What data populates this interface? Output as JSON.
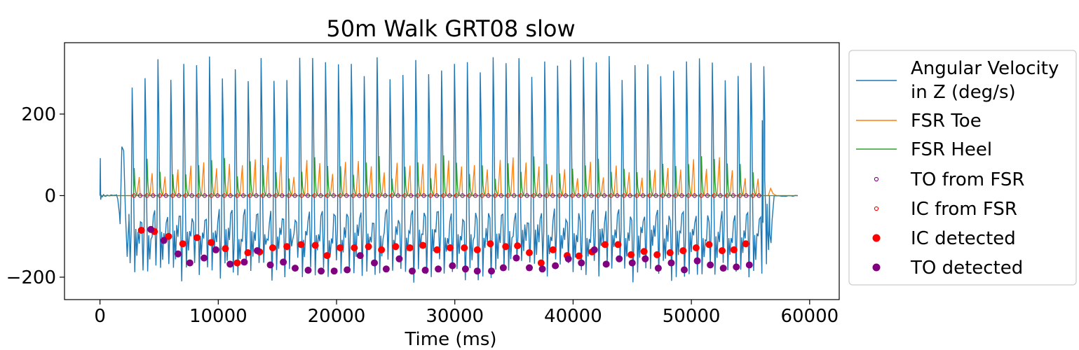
{
  "chart_data": {
    "type": "line",
    "title": "50m Walk GRT08 slow",
    "xlabel": "Time (ms)",
    "ylabel": "",
    "xlim": [
      -3000,
      62500
    ],
    "ylim": [
      -255,
      375
    ],
    "xticks": [
      0,
      10000,
      20000,
      30000,
      40000,
      50000,
      60000
    ],
    "xtick_labels": [
      "0",
      "10000",
      "20000",
      "30000",
      "40000",
      "50000",
      "60000"
    ],
    "yticks": [
      -200,
      0,
      200
    ],
    "ytick_labels": [
      "−200",
      "0",
      "200"
    ],
    "grid": false,
    "legend_position": "outside-right",
    "series": [
      {
        "name": "Angular Velocity\n in Z (deg/s)",
        "kind": "line",
        "color": "#1f77b4",
        "start_ms": 2700,
        "end_ms": 55600,
        "stride_ms": 1090,
        "peak_positive_range": [
          260,
          345
        ],
        "trough_negative_range": [
          -150,
          -215
        ],
        "extent_ms": [
          0,
          59000
        ]
      },
      {
        "name": "FSR Toe",
        "kind": "line",
        "color": "#ff7f0e",
        "peak_range": [
          40,
          95
        ],
        "extent_ms": [
          0,
          59000
        ]
      },
      {
        "name": "FSR Heel",
        "kind": "line",
        "color": "#2ca02c",
        "peak_range": [
          40,
          100
        ],
        "extent_ms": [
          0,
          59000
        ]
      },
      {
        "name": "TO from FSR",
        "kind": "scatter-hollow",
        "color": "#800080",
        "y": 0
      },
      {
        "name": "IC from FSR",
        "kind": "scatter-hollow",
        "color": "#ff0000",
        "y": 0
      },
      {
        "name": "IC detected",
        "kind": "scatter",
        "color": "#ff0000",
        "points": [
          [
            3500,
            -85
          ],
          [
            4600,
            -88
          ],
          [
            5800,
            -100
          ],
          [
            7000,
            -118
          ],
          [
            8200,
            -103
          ],
          [
            9400,
            -115
          ],
          [
            10600,
            -130
          ],
          [
            11600,
            -165
          ],
          [
            12500,
            -140
          ],
          [
            13500,
            -138
          ],
          [
            14600,
            -128
          ],
          [
            15800,
            -125
          ],
          [
            17000,
            -120
          ],
          [
            18200,
            -122
          ],
          [
            19200,
            -147
          ],
          [
            20300,
            -128
          ],
          [
            21500,
            -128
          ],
          [
            22700,
            -125
          ],
          [
            23800,
            -133
          ],
          [
            25000,
            -125
          ],
          [
            26200,
            -128
          ],
          [
            27300,
            -122
          ],
          [
            28500,
            -133
          ],
          [
            29600,
            -128
          ],
          [
            30800,
            -128
          ],
          [
            31900,
            -133
          ],
          [
            33000,
            -118
          ],
          [
            34300,
            -125
          ],
          [
            35300,
            -123
          ],
          [
            36300,
            -140
          ],
          [
            37300,
            -165
          ],
          [
            38300,
            -133
          ],
          [
            39500,
            -147
          ],
          [
            40500,
            -148
          ],
          [
            41600,
            -138
          ],
          [
            42700,
            -120
          ],
          [
            43800,
            -120
          ],
          [
            44900,
            -145
          ],
          [
            46000,
            -137
          ],
          [
            47100,
            -145
          ],
          [
            48200,
            -140
          ],
          [
            49300,
            -135
          ],
          [
            50400,
            -128
          ],
          [
            51500,
            -120
          ],
          [
            52600,
            -135
          ],
          [
            53600,
            -133
          ],
          [
            54600,
            -118
          ]
        ]
      },
      {
        "name": "TO detected",
        "kind": "scatter",
        "color": "#800080",
        "points": [
          [
            4300,
            -83
          ],
          [
            5400,
            -110
          ],
          [
            6600,
            -143
          ],
          [
            7600,
            -165
          ],
          [
            8800,
            -153
          ],
          [
            9800,
            -133
          ],
          [
            11000,
            -168
          ],
          [
            12200,
            -163
          ],
          [
            13300,
            -135
          ],
          [
            14400,
            -170
          ],
          [
            15500,
            -163
          ],
          [
            16500,
            -178
          ],
          [
            17600,
            -183
          ],
          [
            18700,
            -185
          ],
          [
            19800,
            -185
          ],
          [
            20900,
            -182
          ],
          [
            22000,
            -147
          ],
          [
            23200,
            -165
          ],
          [
            24200,
            -180
          ],
          [
            25300,
            -155
          ],
          [
            26400,
            -185
          ],
          [
            27500,
            -183
          ],
          [
            28600,
            -180
          ],
          [
            29800,
            -172
          ],
          [
            30900,
            -180
          ],
          [
            31900,
            -185
          ],
          [
            33100,
            -185
          ],
          [
            34100,
            -177
          ],
          [
            35200,
            -153
          ],
          [
            36300,
            -177
          ],
          [
            37400,
            -180
          ],
          [
            38500,
            -172
          ],
          [
            39600,
            -155
          ],
          [
            40700,
            -165
          ],
          [
            41800,
            -133
          ],
          [
            42800,
            -168
          ],
          [
            43900,
            -155
          ],
          [
            45000,
            -165
          ],
          [
            46100,
            -155
          ],
          [
            47200,
            -178
          ],
          [
            48300,
            -165
          ],
          [
            49400,
            -182
          ],
          [
            50500,
            -160
          ],
          [
            51600,
            -170
          ],
          [
            52700,
            -178
          ],
          [
            53800,
            -175
          ],
          [
            54900,
            -170
          ]
        ]
      }
    ],
    "legend": [
      {
        "label_lines": [
          "Angular Velocity",
          " in Z (deg/s)"
        ],
        "marker": "line",
        "color": "#1f77b4"
      },
      {
        "label_lines": [
          "FSR Toe"
        ],
        "marker": "line",
        "color": "#ff7f0e"
      },
      {
        "label_lines": [
          "FSR Heel"
        ],
        "marker": "line",
        "color": "#2ca02c"
      },
      {
        "label_lines": [
          "TO from FSR"
        ],
        "marker": "hollow",
        "color": "#800080"
      },
      {
        "label_lines": [
          "IC from FSR"
        ],
        "marker": "hollow",
        "color": "#ff0000"
      },
      {
        "label_lines": [
          "IC detected"
        ],
        "marker": "dot",
        "color": "#ff0000"
      },
      {
        "label_lines": [
          "TO detected"
        ],
        "marker": "dot",
        "color": "#800080"
      }
    ]
  }
}
